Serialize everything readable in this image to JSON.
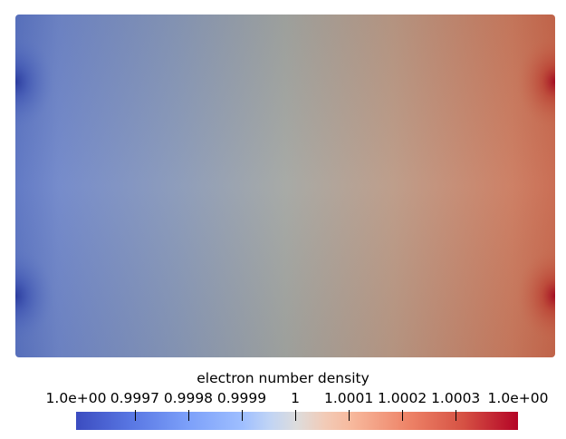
{
  "colorbar": {
    "title": "electron number density",
    "colormap": "coolwarm",
    "colors": {
      "low": "#3b4cc0",
      "mid": "#dddcdc",
      "high": "#b40426"
    },
    "ticks": [
      {
        "label": "1.0e+00",
        "fraction": 0.0
      },
      {
        "label": "0.9997",
        "fraction": 0.133
      },
      {
        "label": "0.9998",
        "fraction": 0.254
      },
      {
        "label": "0.9999",
        "fraction": 0.375
      },
      {
        "label": "1",
        "fraction": 0.496
      },
      {
        "label": "1.0001",
        "fraction": 0.617
      },
      {
        "label": "1.0002",
        "fraction": 0.738
      },
      {
        "label": "1.0003",
        "fraction": 0.859
      },
      {
        "label": "1.0e+00",
        "fraction": 1.0
      }
    ]
  },
  "field": {
    "colors": {
      "left": "#6f86c9",
      "center": "#a3a6a2",
      "right": "#cb7a5e",
      "left_hotspot": "#2b3c9e",
      "right_hotspot": "#a30c22"
    }
  }
}
